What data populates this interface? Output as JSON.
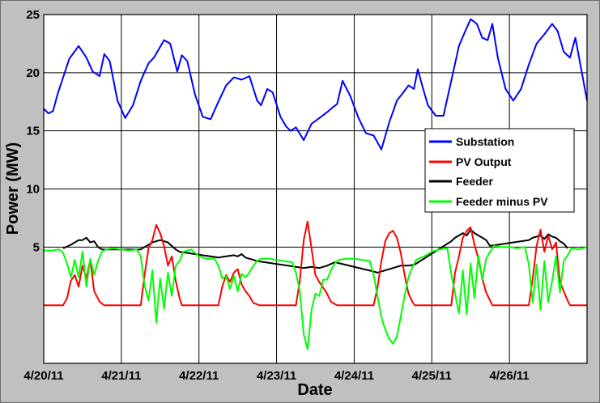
{
  "chart_data": {
    "type": "line",
    "xlabel": "Date",
    "ylabel": "Power (MW)",
    "x_ticks": [
      "4/20/11",
      "4/21/11",
      "4/22/11",
      "4/23/11",
      "4/24/11",
      "4/25/11",
      "4/26/11"
    ],
    "xlim_days": [
      0,
      7
    ],
    "y_ticks": [
      5,
      10,
      15,
      20,
      25
    ],
    "ylim": [
      -5,
      25
    ],
    "grid": true,
    "legend_position": "center-right",
    "series": [
      {
        "name": "Substation",
        "color": "#0000ff",
        "x": [
          0.0,
          0.06,
          0.12,
          0.18,
          0.25,
          0.33,
          0.45,
          0.55,
          0.63,
          0.72,
          0.78,
          0.85,
          0.95,
          1.05,
          1.15,
          1.25,
          1.35,
          1.42,
          1.55,
          1.63,
          1.72,
          1.78,
          1.85,
          1.95,
          2.05,
          2.15,
          2.25,
          2.35,
          2.45,
          2.55,
          2.65,
          2.75,
          2.8,
          2.88,
          2.95,
          3.05,
          3.12,
          3.18,
          3.25,
          3.35,
          3.45,
          3.55,
          3.65,
          3.72,
          3.78,
          3.85,
          3.95,
          4.05,
          4.15,
          4.25,
          4.35,
          4.45,
          4.55,
          4.62,
          4.7,
          4.77,
          4.82,
          4.88,
          4.95,
          5.05,
          5.15,
          5.25,
          5.35,
          5.42,
          5.5,
          5.58,
          5.65,
          5.72,
          5.78,
          5.85,
          5.95,
          6.05,
          6.15,
          6.25,
          6.35,
          6.45,
          6.55,
          6.62,
          6.7,
          6.78,
          6.85,
          6.92,
          7.0
        ],
        "y": [
          16.9,
          16.5,
          16.7,
          18.2,
          19.6,
          21.2,
          22.3,
          21.3,
          20.1,
          19.7,
          21.6,
          21.0,
          17.6,
          16.1,
          17.2,
          19.3,
          20.8,
          21.3,
          22.8,
          22.5,
          20.1,
          21.5,
          21.0,
          18.1,
          16.2,
          16.0,
          17.5,
          18.9,
          19.6,
          19.4,
          19.7,
          17.6,
          17.2,
          18.6,
          18.3,
          16.2,
          15.4,
          15.0,
          15.3,
          14.2,
          15.6,
          16.1,
          16.6,
          17.0,
          17.3,
          19.3,
          18.0,
          16.2,
          14.8,
          14.6,
          13.4,
          15.7,
          17.6,
          18.2,
          18.9,
          18.6,
          20.3,
          18.8,
          17.2,
          16.3,
          16.3,
          19.3,
          22.3,
          23.4,
          24.6,
          24.2,
          23.0,
          22.8,
          24.2,
          21.3,
          18.6,
          17.6,
          18.6,
          20.7,
          22.5,
          23.3,
          24.2,
          23.6,
          21.8,
          21.3,
          23.0,
          20.5,
          17.6
        ]
      },
      {
        "name": "PV Output",
        "color": "#ff0000",
        "x": [
          0.0,
          0.25,
          0.3,
          0.35,
          0.4,
          0.45,
          0.5,
          0.55,
          0.6,
          0.65,
          0.72,
          0.78,
          1.0,
          1.25,
          1.3,
          1.35,
          1.4,
          1.45,
          1.5,
          1.55,
          1.6,
          1.65,
          1.7,
          1.75,
          1.78,
          2.0,
          2.25,
          2.3,
          2.35,
          2.4,
          2.45,
          2.5,
          2.55,
          2.6,
          2.65,
          2.7,
          2.78,
          3.0,
          3.25,
          3.3,
          3.35,
          3.4,
          3.45,
          3.5,
          3.55,
          3.6,
          3.65,
          3.7,
          3.78,
          4.0,
          4.25,
          4.3,
          4.35,
          4.4,
          4.45,
          4.5,
          4.55,
          4.6,
          4.65,
          4.7,
          4.75,
          4.78,
          5.0,
          5.25,
          5.3,
          5.35,
          5.4,
          5.45,
          5.5,
          5.55,
          5.6,
          5.65,
          5.7,
          5.78,
          6.0,
          6.25,
          6.3,
          6.35,
          6.4,
          6.45,
          6.5,
          6.55,
          6.6,
          6.65,
          6.7,
          6.75,
          6.78,
          7.0
        ],
        "y": [
          0,
          0,
          0.6,
          2.1,
          2.6,
          1.6,
          3.4,
          2.3,
          3.9,
          1.2,
          0.3,
          0,
          0,
          0,
          2.6,
          4.9,
          5.6,
          6.9,
          6.2,
          5.1,
          3.4,
          4.2,
          2.1,
          0.6,
          0,
          0,
          0,
          1.6,
          2.6,
          2.0,
          2.8,
          3.1,
          1.8,
          1.2,
          0.8,
          0.2,
          0,
          0,
          0,
          2.1,
          5.6,
          7.2,
          4.9,
          2.6,
          2.0,
          1.5,
          1.0,
          0.3,
          0,
          0,
          0,
          1.5,
          3.8,
          5.5,
          6.2,
          6.4,
          5.8,
          4.5,
          2.6,
          1.0,
          0.3,
          0,
          0,
          0,
          2.8,
          4.2,
          5.8,
          6.4,
          6.7,
          5.2,
          4.0,
          2.3,
          1.1,
          0,
          0,
          0,
          2.3,
          5.1,
          6.5,
          4.6,
          6.0,
          4.8,
          5.4,
          2.0,
          1.2,
          0.4,
          0,
          0
        ]
      },
      {
        "name": "Feeder",
        "color": "#000000",
        "x": [
          0.25,
          0.35,
          0.45,
          0.5,
          0.55,
          0.6,
          0.65,
          0.7,
          0.75,
          1.25,
          1.3,
          1.35,
          1.4,
          1.45,
          1.5,
          1.55,
          1.6,
          1.65,
          1.7,
          1.75,
          2.25,
          2.35,
          2.45,
          2.5,
          2.55,
          2.6,
          2.65,
          2.7,
          2.75,
          3.25,
          3.35,
          3.45,
          3.55,
          3.65,
          3.75,
          4.25,
          4.3,
          4.4,
          4.5,
          4.6,
          4.7,
          4.78,
          5.25,
          5.3,
          5.35,
          5.4,
          5.45,
          5.5,
          5.55,
          5.6,
          5.65,
          5.7,
          5.75,
          6.25,
          6.3,
          6.35,
          6.4,
          6.45,
          6.5,
          6.55,
          6.6,
          6.65,
          6.7,
          6.75
        ],
        "y": [
          4.9,
          5.2,
          5.6,
          5.6,
          5.8,
          5.4,
          5.5,
          5.0,
          4.8,
          4.8,
          5.0,
          5.2,
          5.4,
          5.5,
          5.6,
          5.5,
          5.4,
          5.1,
          4.8,
          4.6,
          4.1,
          4.2,
          4.3,
          4.2,
          4.4,
          4.1,
          4.0,
          3.9,
          3.8,
          3.3,
          3.2,
          3.3,
          3.2,
          3.4,
          3.7,
          2.9,
          2.8,
          3.0,
          3.2,
          3.4,
          3.4,
          3.5,
          5.5,
          5.8,
          6.0,
          6.2,
          6.0,
          6.5,
          6.2,
          6.0,
          5.8,
          5.6,
          5.1,
          5.6,
          5.8,
          5.9,
          6.0,
          5.7,
          6.1,
          5.9,
          5.8,
          5.5,
          5.3,
          4.9
        ]
      },
      {
        "name": "Feeder minus PV",
        "color": "#00ff00",
        "x": [
          0.0,
          0.1,
          0.2,
          0.25,
          0.3,
          0.35,
          0.4,
          0.45,
          0.5,
          0.55,
          0.6,
          0.65,
          0.7,
          0.75,
          0.8,
          0.9,
          1.0,
          1.1,
          1.2,
          1.25,
          1.3,
          1.35,
          1.4,
          1.45,
          1.5,
          1.55,
          1.6,
          1.65,
          1.7,
          1.75,
          1.8,
          1.9,
          2.0,
          2.1,
          2.2,
          2.25,
          2.3,
          2.35,
          2.4,
          2.45,
          2.5,
          2.55,
          2.6,
          2.65,
          2.7,
          2.75,
          2.8,
          2.9,
          3.0,
          3.1,
          3.2,
          3.25,
          3.3,
          3.35,
          3.4,
          3.45,
          3.5,
          3.55,
          3.6,
          3.65,
          3.7,
          3.75,
          3.8,
          3.9,
          4.0,
          4.1,
          4.2,
          4.25,
          4.3,
          4.35,
          4.4,
          4.45,
          4.5,
          4.55,
          4.6,
          4.65,
          4.7,
          4.75,
          4.8,
          4.9,
          5.0,
          5.1,
          5.2,
          5.25,
          5.3,
          5.35,
          5.4,
          5.45,
          5.5,
          5.55,
          5.6,
          5.65,
          5.7,
          5.75,
          5.8,
          5.9,
          6.0,
          6.1,
          6.2,
          6.25,
          6.3,
          6.35,
          6.4,
          6.45,
          6.5,
          6.55,
          6.6,
          6.65,
          6.7,
          6.75,
          6.8,
          6.9,
          7.0
        ],
        "y": [
          4.7,
          4.7,
          4.8,
          4.5,
          3.6,
          2.4,
          3.9,
          2.4,
          4.6,
          1.6,
          4.0,
          2.6,
          3.8,
          4.6,
          4.8,
          4.9,
          4.8,
          4.7,
          4.8,
          4.2,
          1.7,
          0.4,
          3.0,
          -1.5,
          2.3,
          -0.3,
          2.8,
          0.8,
          3.4,
          3.8,
          4.6,
          4.8,
          4.2,
          4.0,
          4.0,
          3.4,
          2.3,
          2.5,
          1.4,
          2.5,
          1.2,
          2.7,
          2.4,
          2.8,
          3.4,
          3.8,
          4.0,
          4.0,
          3.9,
          3.8,
          3.7,
          2.8,
          1.2,
          -2.5,
          -3.8,
          -0.4,
          1.0,
          0.8,
          2.2,
          2.2,
          3.0,
          3.6,
          3.9,
          4.0,
          4.0,
          3.9,
          3.8,
          2.6,
          0.8,
          -1.0,
          -2.1,
          -2.9,
          -3.3,
          -2.7,
          -1.0,
          0.8,
          2.4,
          3.3,
          3.9,
          4.2,
          4.6,
          4.8,
          4.9,
          2.7,
          1.0,
          -0.7,
          3.0,
          -0.8,
          3.6,
          0.6,
          4.3,
          2.2,
          4.0,
          4.6,
          5.1,
          5.0,
          5.0,
          4.9,
          5.0,
          3.5,
          0.2,
          3.5,
          -0.4,
          3.8,
          0.3,
          2.1,
          4.2,
          1.1,
          3.8,
          4.3,
          4.9,
          4.8,
          5.0
        ]
      }
    ]
  }
}
